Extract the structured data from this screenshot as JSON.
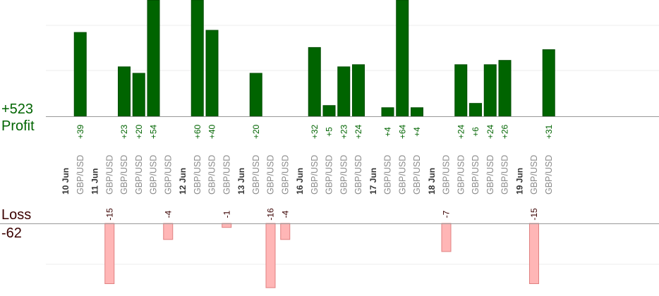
{
  "summary": {
    "profit_total": "+523",
    "profit_label": "Profit",
    "loss_label": "Loss",
    "loss_total": "-62"
  },
  "colors": {
    "profit_bar": "#006400",
    "profit_bar_dark": "#004d00",
    "profit_text": "#006400",
    "loss_bar": "#ffb6b6",
    "loss_bar_edge": "#e08080",
    "loss_text": "#3a0000",
    "date_text": "#333333",
    "symbol_text": "#8a8a8a",
    "grid": "#eeeeee",
    "axis": "#999999"
  },
  "chart_data": {
    "type": "bar",
    "title": "",
    "grid": true,
    "axis_breaks": {
      "profit_top_clipped": true
    },
    "columns": [
      {
        "kind": "date",
        "label": "10 Jun"
      },
      {
        "kind": "trade",
        "label": "GBP/USD",
        "value": 39,
        "value_label": "+39"
      },
      {
        "kind": "date",
        "label": "11 Jun"
      },
      {
        "kind": "trade",
        "label": "GBP/USD",
        "value": -15,
        "value_label": "-15"
      },
      {
        "kind": "trade",
        "label": "GBP/USD",
        "value": 23,
        "value_label": "+23"
      },
      {
        "kind": "trade",
        "label": "GBP/USD",
        "value": 20,
        "value_label": "+20"
      },
      {
        "kind": "trade",
        "label": "GBP/USD",
        "value": 54,
        "value_label": "+54"
      },
      {
        "kind": "trade",
        "label": "GBP/USD",
        "value": -4,
        "value_label": "-4"
      },
      {
        "kind": "date",
        "label": "12 Jun"
      },
      {
        "kind": "trade",
        "label": "GBP/USD",
        "value": 60,
        "value_label": "+60"
      },
      {
        "kind": "trade",
        "label": "GBP/USD",
        "value": 40,
        "value_label": "+40"
      },
      {
        "kind": "trade",
        "label": "GBP/USD",
        "value": -1,
        "value_label": "-1"
      },
      {
        "kind": "date",
        "label": "13 Jun"
      },
      {
        "kind": "trade",
        "label": "GBP/USD",
        "value": 20,
        "value_label": "+20"
      },
      {
        "kind": "trade",
        "label": "GBP/USD",
        "value": -16,
        "value_label": "-16"
      },
      {
        "kind": "trade",
        "label": "GBP/USD",
        "value": -4,
        "value_label": "-4"
      },
      {
        "kind": "date",
        "label": "16 Jun"
      },
      {
        "kind": "trade",
        "label": "GBP/USD",
        "value": 32,
        "value_label": "+32"
      },
      {
        "kind": "trade",
        "label": "GBP/USD",
        "value": 5,
        "value_label": "+5"
      },
      {
        "kind": "trade",
        "label": "GBP/USD",
        "value": 23,
        "value_label": "+23"
      },
      {
        "kind": "trade",
        "label": "GBP/USD",
        "value": 24,
        "value_label": "+24"
      },
      {
        "kind": "date",
        "label": "17 Jun"
      },
      {
        "kind": "trade",
        "label": "GBP/USD",
        "value": 4,
        "value_label": "+4"
      },
      {
        "kind": "trade",
        "label": "GBP/USD",
        "value": 64,
        "value_label": "+64"
      },
      {
        "kind": "trade",
        "label": "GBP/USD",
        "value": 4,
        "value_label": "+4"
      },
      {
        "kind": "date",
        "label": "18 Jun"
      },
      {
        "kind": "trade",
        "label": "GBP/USD",
        "value": -7,
        "value_label": "-7"
      },
      {
        "kind": "trade",
        "label": "GBP/USD",
        "value": 24,
        "value_label": "+24"
      },
      {
        "kind": "trade",
        "label": "GBP/USD",
        "value": 6,
        "value_label": "+6"
      },
      {
        "kind": "trade",
        "label": "GBP/USD",
        "value": 24,
        "value_label": "+24"
      },
      {
        "kind": "trade",
        "label": "GBP/USD",
        "value": 26,
        "value_label": "+26"
      },
      {
        "kind": "date",
        "label": "19 Jun"
      },
      {
        "kind": "trade",
        "label": "GBP/USD",
        "value": -15,
        "value_label": "-15"
      },
      {
        "kind": "trade",
        "label": "GBP/USD",
        "value": 31,
        "value_label": "+31"
      }
    ]
  }
}
